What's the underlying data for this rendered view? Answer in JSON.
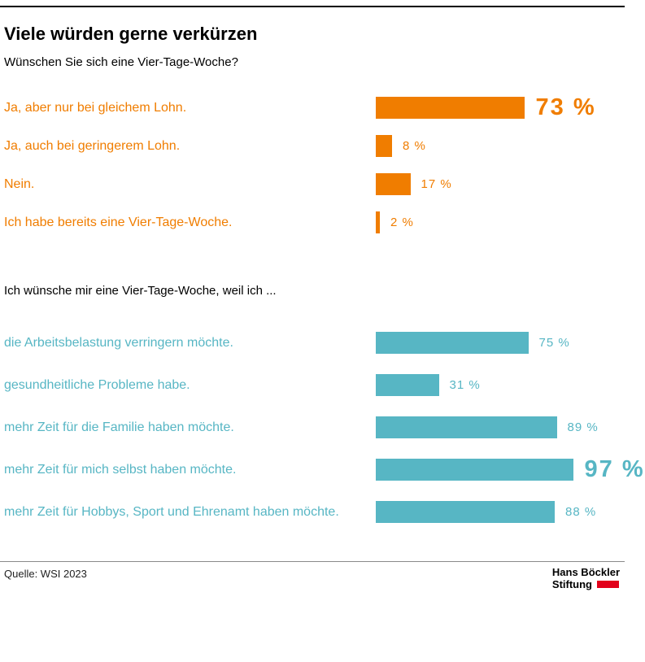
{
  "header": {
    "title": "Viele würden gerne verkürzen"
  },
  "footer": {
    "source": "Quelle: WSI 2023",
    "logo": {
      "line1": "Hans Böckler",
      "line2": "Stiftung"
    }
  },
  "colors": {
    "orange": "#F07D00",
    "teal": "#57B6C4",
    "logo_red": "#E2001A"
  },
  "chart_data": [
    {
      "type": "bar",
      "orientation": "horizontal",
      "title": "Wünschen Sie sich eine Vier-Tage-Woche?",
      "categories": [
        "Ja, aber nur bei gleichem Lohn.",
        "Ja, auch bei geringerem Lohn.",
        "Nein.",
        "Ich habe bereits eine Vier-Tage-Woche."
      ],
      "values": [
        73,
        8,
        17,
        2
      ],
      "value_labels": [
        "73 %",
        "8 %",
        "17 %",
        "2 %"
      ],
      "highlighted_value": "73 %",
      "bar_color": "#F07D00",
      "xlim": [
        0,
        100
      ],
      "grid": false,
      "legend": "none"
    },
    {
      "type": "bar",
      "orientation": "horizontal",
      "title": "Ich wünsche mir eine Vier-Tage-Woche, weil ich ...",
      "categories": [
        "die Arbeitsbelastung verringern möchte.",
        "gesundheitliche Probleme habe.",
        "mehr Zeit für die Familie haben möchte.",
        "mehr Zeit für mich selbst haben möchte.",
        "mehr Zeit für Hobbys, Sport und Ehrenamt haben möchte."
      ],
      "values": [
        75,
        31,
        89,
        97,
        88
      ],
      "value_labels": [
        "75 %",
        "31 %",
        "89 %",
        "97 %",
        "88 %"
      ],
      "highlighted_value": "97 %",
      "bar_color": "#57B6C4",
      "xlim": [
        0,
        100
      ],
      "grid": false,
      "legend": "none"
    }
  ]
}
